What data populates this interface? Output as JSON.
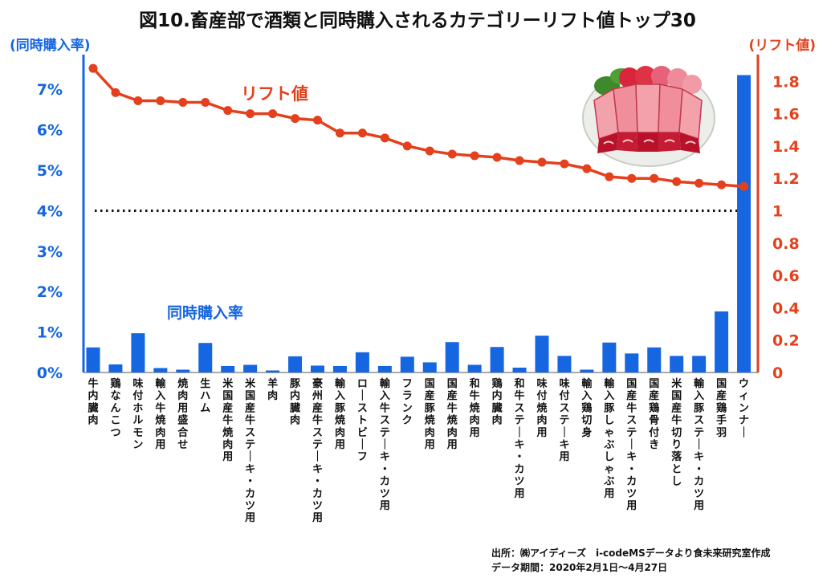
{
  "chart_data": {
    "type": "bar+line",
    "title": "図10.畜産部で酒類と同時購入されるカテゴリーリフト値トップ30",
    "left_axis_title": "(同時購入率)",
    "right_axis_title": "(リフト値)",
    "left_ticks": [
      "0%",
      "1%",
      "2%",
      "3%",
      "4%",
      "5%",
      "6%",
      "7%"
    ],
    "right_ticks": [
      "0",
      "0.2",
      "0.4",
      "0.6",
      "0.8",
      "1",
      "1.2",
      "1.4",
      "1.6",
      "1.8"
    ],
    "ylim_left": [
      0,
      8
    ],
    "ylim_right": [
      0,
      2.0
    ],
    "reference_line": 1,
    "categories": [
      "牛内臓肉",
      "鶏なんこつ",
      "味付ホルモン",
      "輸入牛焼肉用",
      "焼肉用盛合せ",
      "生ハム",
      "米国産牛焼肉用",
      "米国産牛ステーキ・カツ用",
      "羊肉",
      "豚内臓肉",
      "豪州産牛ステーキ・カツ用",
      "輸入豚焼肉用",
      "ローストビーフ",
      "輸入牛ステーキ・カツ用",
      "フランク",
      "国産豚焼肉用",
      "国産牛焼肉用",
      "和牛焼肉用",
      "鶏内臓肉",
      "和牛ステーキ・カツ用",
      "味付焼肉用",
      "味付ステーキ用",
      "輸入鶏切身",
      "輸入豚しゃぶしゃぶ用",
      "国産牛ステーキ・カツ用",
      "国産鶏骨付き",
      "米国産牛切り落とし",
      "輸入豚ステーキ・カツ用",
      "国産鶏手羽",
      "ウィンナー"
    ],
    "series": [
      {
        "name": "同時購入率",
        "type": "bar",
        "axis": "left",
        "unit": "%",
        "values": [
          0.62,
          0.2,
          0.97,
          0.11,
          0.07,
          0.73,
          0.16,
          0.19,
          0.05,
          0.4,
          0.17,
          0.16,
          0.5,
          0.16,
          0.39,
          0.25,
          0.75,
          0.19,
          0.63,
          0.12,
          0.91,
          0.41,
          0.07,
          0.74,
          0.47,
          0.62,
          0.41,
          0.41,
          1.51,
          7.35
        ]
      },
      {
        "name": "リフト値",
        "type": "line",
        "axis": "right",
        "values": [
          1.88,
          1.73,
          1.68,
          1.68,
          1.67,
          1.67,
          1.62,
          1.6,
          1.6,
          1.57,
          1.56,
          1.48,
          1.48,
          1.45,
          1.4,
          1.37,
          1.35,
          1.34,
          1.33,
          1.31,
          1.3,
          1.29,
          1.26,
          1.21,
          1.2,
          1.2,
          1.18,
          1.17,
          1.16,
          1.15
        ]
      }
    ],
    "series_label_line": "リフト値",
    "series_label_bar": "同時購入率",
    "colors": {
      "bar": "#1566e0",
      "line": "#e4401c",
      "reference": "#111111",
      "left_axis": "#1566e0",
      "right_axis": "#e4401c"
    }
  },
  "source": {
    "line1": "出所：㈱アイディーズ　i-codeMSデータより食未来研究室作成",
    "line2": "データ期間：2020年2月1日～4月27日"
  },
  "illustration": {
    "name": "meat-platter-illustration",
    "label": "ステーキ"
  }
}
